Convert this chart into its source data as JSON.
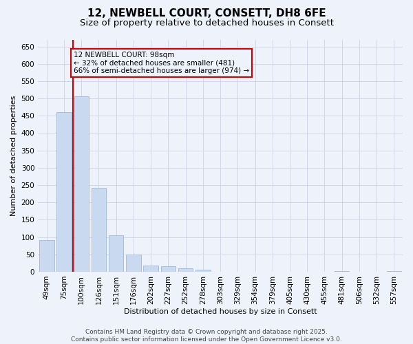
{
  "title1": "12, NEWBELL COURT, CONSETT, DH8 6FE",
  "title2": "Size of property relative to detached houses in Consett",
  "xlabel": "Distribution of detached houses by size in Consett",
  "ylabel": "Number of detached properties",
  "categories": [
    "49sqm",
    "75sqm",
    "100sqm",
    "126sqm",
    "151sqm",
    "176sqm",
    "202sqm",
    "227sqm",
    "252sqm",
    "278sqm",
    "303sqm",
    "329sqm",
    "354sqm",
    "379sqm",
    "405sqm",
    "430sqm",
    "455sqm",
    "481sqm",
    "506sqm",
    "532sqm",
    "557sqm"
  ],
  "values": [
    92,
    460,
    507,
    242,
    105,
    49,
    18,
    15,
    10,
    6,
    0,
    0,
    0,
    0,
    0,
    0,
    0,
    1,
    0,
    0,
    1
  ],
  "bar_color": "#c9d9f0",
  "bar_edge_color": "#a0b8d8",
  "property_line_color": "#cc0000",
  "annotation_text": "12 NEWBELL COURT: 98sqm\n← 32% of detached houses are smaller (481)\n66% of semi-detached houses are larger (974) →",
  "annotation_box_color": "#cc0000",
  "annotation_text_color": "#000000",
  "footer1": "Contains HM Land Registry data © Crown copyright and database right 2025.",
  "footer2": "Contains public sector information licensed under the Open Government Licence v3.0.",
  "background_color": "#eef2fb",
  "grid_color": "#d0d8e8",
  "ylim": [
    0,
    670
  ],
  "yticks": [
    0,
    50,
    100,
    150,
    200,
    250,
    300,
    350,
    400,
    450,
    500,
    550,
    600,
    650
  ],
  "title_fontsize": 11,
  "subtitle_fontsize": 9.5,
  "axis_label_fontsize": 8,
  "tick_fontsize": 7.5,
  "annotation_fontsize": 7.5,
  "footer_fontsize": 6.5
}
